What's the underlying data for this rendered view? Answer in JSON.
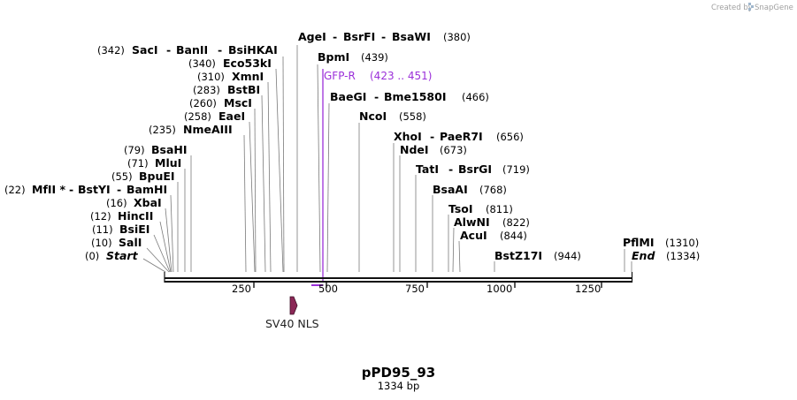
{
  "credit": {
    "text": "Created by",
    "brand": "SnapGene"
  },
  "plasmid": {
    "name": "pPD95_93",
    "length_label": "1334 bp"
  },
  "ruler": {
    "ticks": [
      "250",
      "500",
      "750",
      "1000",
      "1250"
    ]
  },
  "feature": {
    "name": "SV40 NLS",
    "color": "#8b2756"
  },
  "primer": {
    "name": "GFP-R",
    "range": "(423 .. 451)",
    "color": "#9b30d9"
  },
  "left_sites": [
    {
      "pos": "(342)",
      "names": [
        "SacI",
        "BanII",
        "BsiHKAI"
      ]
    },
    {
      "pos": "(340)",
      "names": [
        "Eco53kI"
      ]
    },
    {
      "pos": "(310)",
      "names": [
        "XmnI"
      ]
    },
    {
      "pos": "(283)",
      "names": [
        "BstBI"
      ]
    },
    {
      "pos": "(260)",
      "names": [
        "MscI"
      ]
    },
    {
      "pos": "(258)",
      "names": [
        "EaeI"
      ]
    },
    {
      "pos": "(235)",
      "names": [
        "NmeAIII"
      ]
    },
    {
      "pos": "(79)",
      "names": [
        "BsaHI"
      ]
    },
    {
      "pos": "(71)",
      "names": [
        "MluI"
      ]
    },
    {
      "pos": "(55)",
      "names": [
        "BpuEI"
      ]
    },
    {
      "pos": "(22)",
      "names": [
        "MfII *",
        "BstYI",
        "BamHI"
      ]
    },
    {
      "pos": "(16)",
      "names": [
        "XbaI"
      ]
    },
    {
      "pos": "(12)",
      "names": [
        "HincII"
      ]
    },
    {
      "pos": "(11)",
      "names": [
        "BsiEI"
      ]
    },
    {
      "pos": "(10)",
      "names": [
        "SalI"
      ]
    },
    {
      "pos": "(0)",
      "names": [
        "Start"
      ]
    }
  ],
  "right_sites": [
    {
      "names": [
        "AgeI",
        "BsrFI",
        "BsaWI"
      ],
      "pos": "(380)"
    },
    {
      "names": [
        "BpmI"
      ],
      "pos": "(439)"
    },
    {
      "names": [
        "BaeGI",
        "Bme1580I"
      ],
      "pos": "(466)"
    },
    {
      "names": [
        "NcoI"
      ],
      "pos": "(558)"
    },
    {
      "names": [
        "XhoI",
        "PaeR7I"
      ],
      "pos": "(656)"
    },
    {
      "names": [
        "NdeI"
      ],
      "pos": "(673)"
    },
    {
      "names": [
        "TatI",
        "BsrGI"
      ],
      "pos": "(719)"
    },
    {
      "names": [
        "BsaAI"
      ],
      "pos": "(768)"
    },
    {
      "names": [
        "TsoI"
      ],
      "pos": "(811)"
    },
    {
      "names": [
        "AlwNI"
      ],
      "pos": "(822)"
    },
    {
      "names": [
        "AcuI"
      ],
      "pos": "(844)"
    },
    {
      "names": [
        "BstZ17I"
      ],
      "pos": "(944)"
    },
    {
      "names": [
        "PflMI"
      ],
      "pos": "(1310)"
    },
    {
      "names": [
        "End"
      ],
      "pos": "(1334)"
    }
  ]
}
